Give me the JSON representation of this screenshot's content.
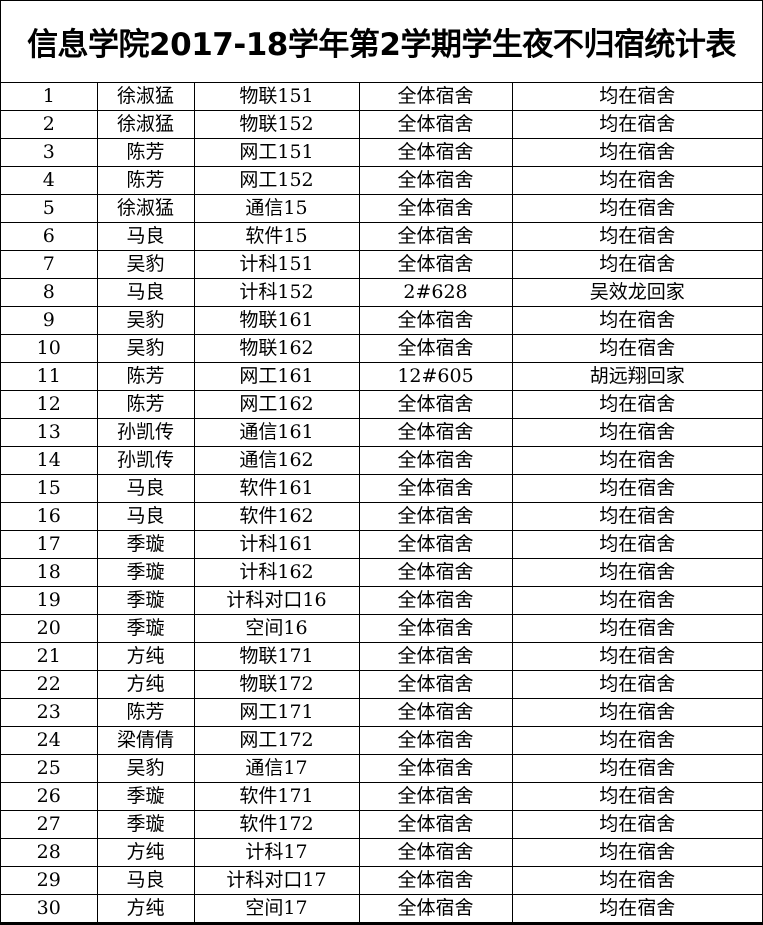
{
  "title": "信息学院2017-18学年第2学期学生夜不归宿统计表",
  "rows": [
    [
      "1",
      "徐淑猛",
      "物联151",
      "全体宿舍",
      "均在宿舍"
    ],
    [
      "2",
      "徐淑猛",
      "物联152",
      "全体宿舍",
      "均在宿舍"
    ],
    [
      "3",
      "陈芳",
      "网工151",
      "全体宿舍",
      "均在宿舍"
    ],
    [
      "4",
      "陈芳",
      "网工152",
      "全体宿舍",
      "均在宿舍"
    ],
    [
      "5",
      "徐淑猛",
      "通信15",
      "全体宿舍",
      "均在宿舍"
    ],
    [
      "6",
      "马良",
      "软件15",
      "全体宿舍",
      "均在宿舍"
    ],
    [
      "7",
      "吴豹",
      "计科151",
      "全体宿舍",
      "均在宿舍"
    ],
    [
      "8",
      "马良",
      "计科152",
      "2#628",
      "吴效龙回家"
    ],
    [
      "9",
      "吴豹",
      "物联161",
      "全体宿舍",
      "均在宿舍"
    ],
    [
      "10",
      "吴豹",
      "物联162",
      "全体宿舍",
      "均在宿舍"
    ],
    [
      "11",
      "陈芳",
      "网工161",
      "12#605",
      "胡远翔回家"
    ],
    [
      "12",
      "陈芳",
      "网工162",
      "全体宿舍",
      "均在宿舍"
    ],
    [
      "13",
      "孙凯传",
      "通信161",
      "全体宿舍",
      "均在宿舍"
    ],
    [
      "14",
      "孙凯传",
      "通信162",
      "全体宿舍",
      "均在宿舍"
    ],
    [
      "15",
      "马良",
      "软件161",
      "全体宿舍",
      "均在宿舍"
    ],
    [
      "16",
      "马良",
      "软件162",
      "全体宿舍",
      "均在宿舍"
    ],
    [
      "17",
      "季璇",
      "计科161",
      "全体宿舍",
      "均在宿舍"
    ],
    [
      "18",
      "季璇",
      "计科162",
      "全体宿舍",
      "均在宿舍"
    ],
    [
      "19",
      "季璇",
      "计科对口16",
      "全体宿舍",
      "均在宿舍"
    ],
    [
      "20",
      "季璇",
      "空间16",
      "全体宿舍",
      "均在宿舍"
    ],
    [
      "21",
      "方纯",
      "物联171",
      "全体宿舍",
      "均在宿舍"
    ],
    [
      "22",
      "方纯",
      "物联172",
      "全体宿舍",
      "均在宿舍"
    ],
    [
      "23",
      "陈芳",
      "网工171",
      "全体宿舍",
      "均在宿舍"
    ],
    [
      "24",
      "梁倩倩",
      "网工172",
      "全体宿舍",
      "均在宿舍"
    ],
    [
      "25",
      "吴豹",
      "通信17",
      "全体宿舍",
      "均在宿舍"
    ],
    [
      "26",
      "季璇",
      "软件171",
      "全体宿舍",
      "均在宿舍"
    ],
    [
      "27",
      "季璇",
      "软件172",
      "全体宿舍",
      "均在宿舍"
    ],
    [
      "28",
      "方纯",
      "计科17",
      "全体宿舍",
      "均在宿舍"
    ],
    [
      "29",
      "马良",
      "计科对口17",
      "全体宿舍",
      "均在宿舍"
    ],
    [
      "30",
      "方纯",
      "空间17",
      "全体宿舍",
      "均在宿舍"
    ]
  ]
}
